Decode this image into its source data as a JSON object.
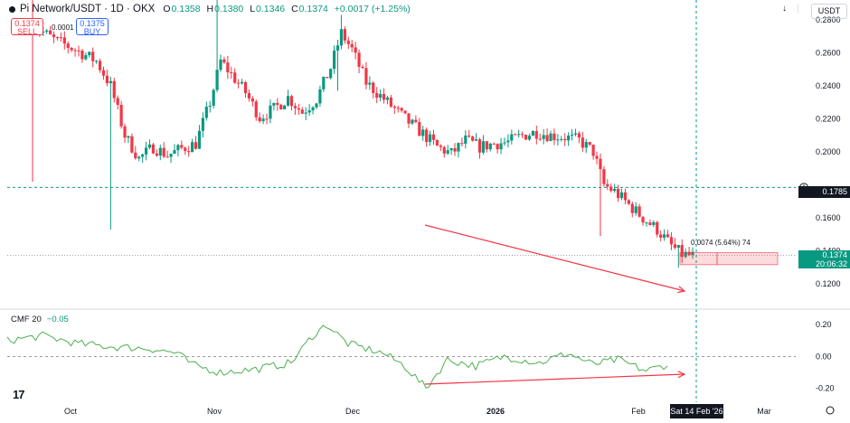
{
  "header": {
    "symbol": "Pi Network/USDT · 1D · OKX",
    "ohlc": [
      {
        "k": "O",
        "v": "0.1358"
      },
      {
        "k": "H",
        "v": "0.1380"
      },
      {
        "k": "L",
        "v": "0.1346"
      },
      {
        "k": "C",
        "v": "0.1374"
      }
    ],
    "change": "+0.0017 (+1.25%)"
  },
  "trade": {
    "sell_price": "0.1374",
    "sell_label": "SELL",
    "spread": "0.0001",
    "buy_price": "0.1375",
    "buy_label": "BUY"
  },
  "toolbar": {
    "down_arrow": "↓",
    "separator": "|",
    "currency": "USDT"
  },
  "axis": {
    "price_ticks": [
      "0.2800",
      "0.2600",
      "0.2400",
      "0.2200",
      "0.2000",
      "0.1600",
      "0.1400",
      "0.1200"
    ],
    "cmf_ticks": [
      "0.20",
      "0.00",
      "-0.20"
    ],
    "time_ticks": [
      "Oct",
      "Nov",
      "Dec",
      "2026",
      "Feb",
      "Mar"
    ]
  },
  "price_labels": {
    "last_price": "0.1374",
    "countdown": "20:06:32",
    "horizontal_line": "0.1785"
  },
  "measure_label": "0.0074 (5.64%) 74",
  "cmf": {
    "label": "CMF 20",
    "value": "−0.05"
  },
  "crosshair_date": "Sat 14 Feb '26",
  "logo": "17",
  "colors": {
    "up": "#089981",
    "down": "#f23645",
    "cmf": "#4caf50",
    "annotation": "#f23645"
  },
  "chart_data": {
    "type": "candlestick",
    "ohlc": [],
    "ylim": [
      0.107,
      0.292
    ],
    "cmf_ylim": [
      -0.27,
      0.28
    ]
  }
}
